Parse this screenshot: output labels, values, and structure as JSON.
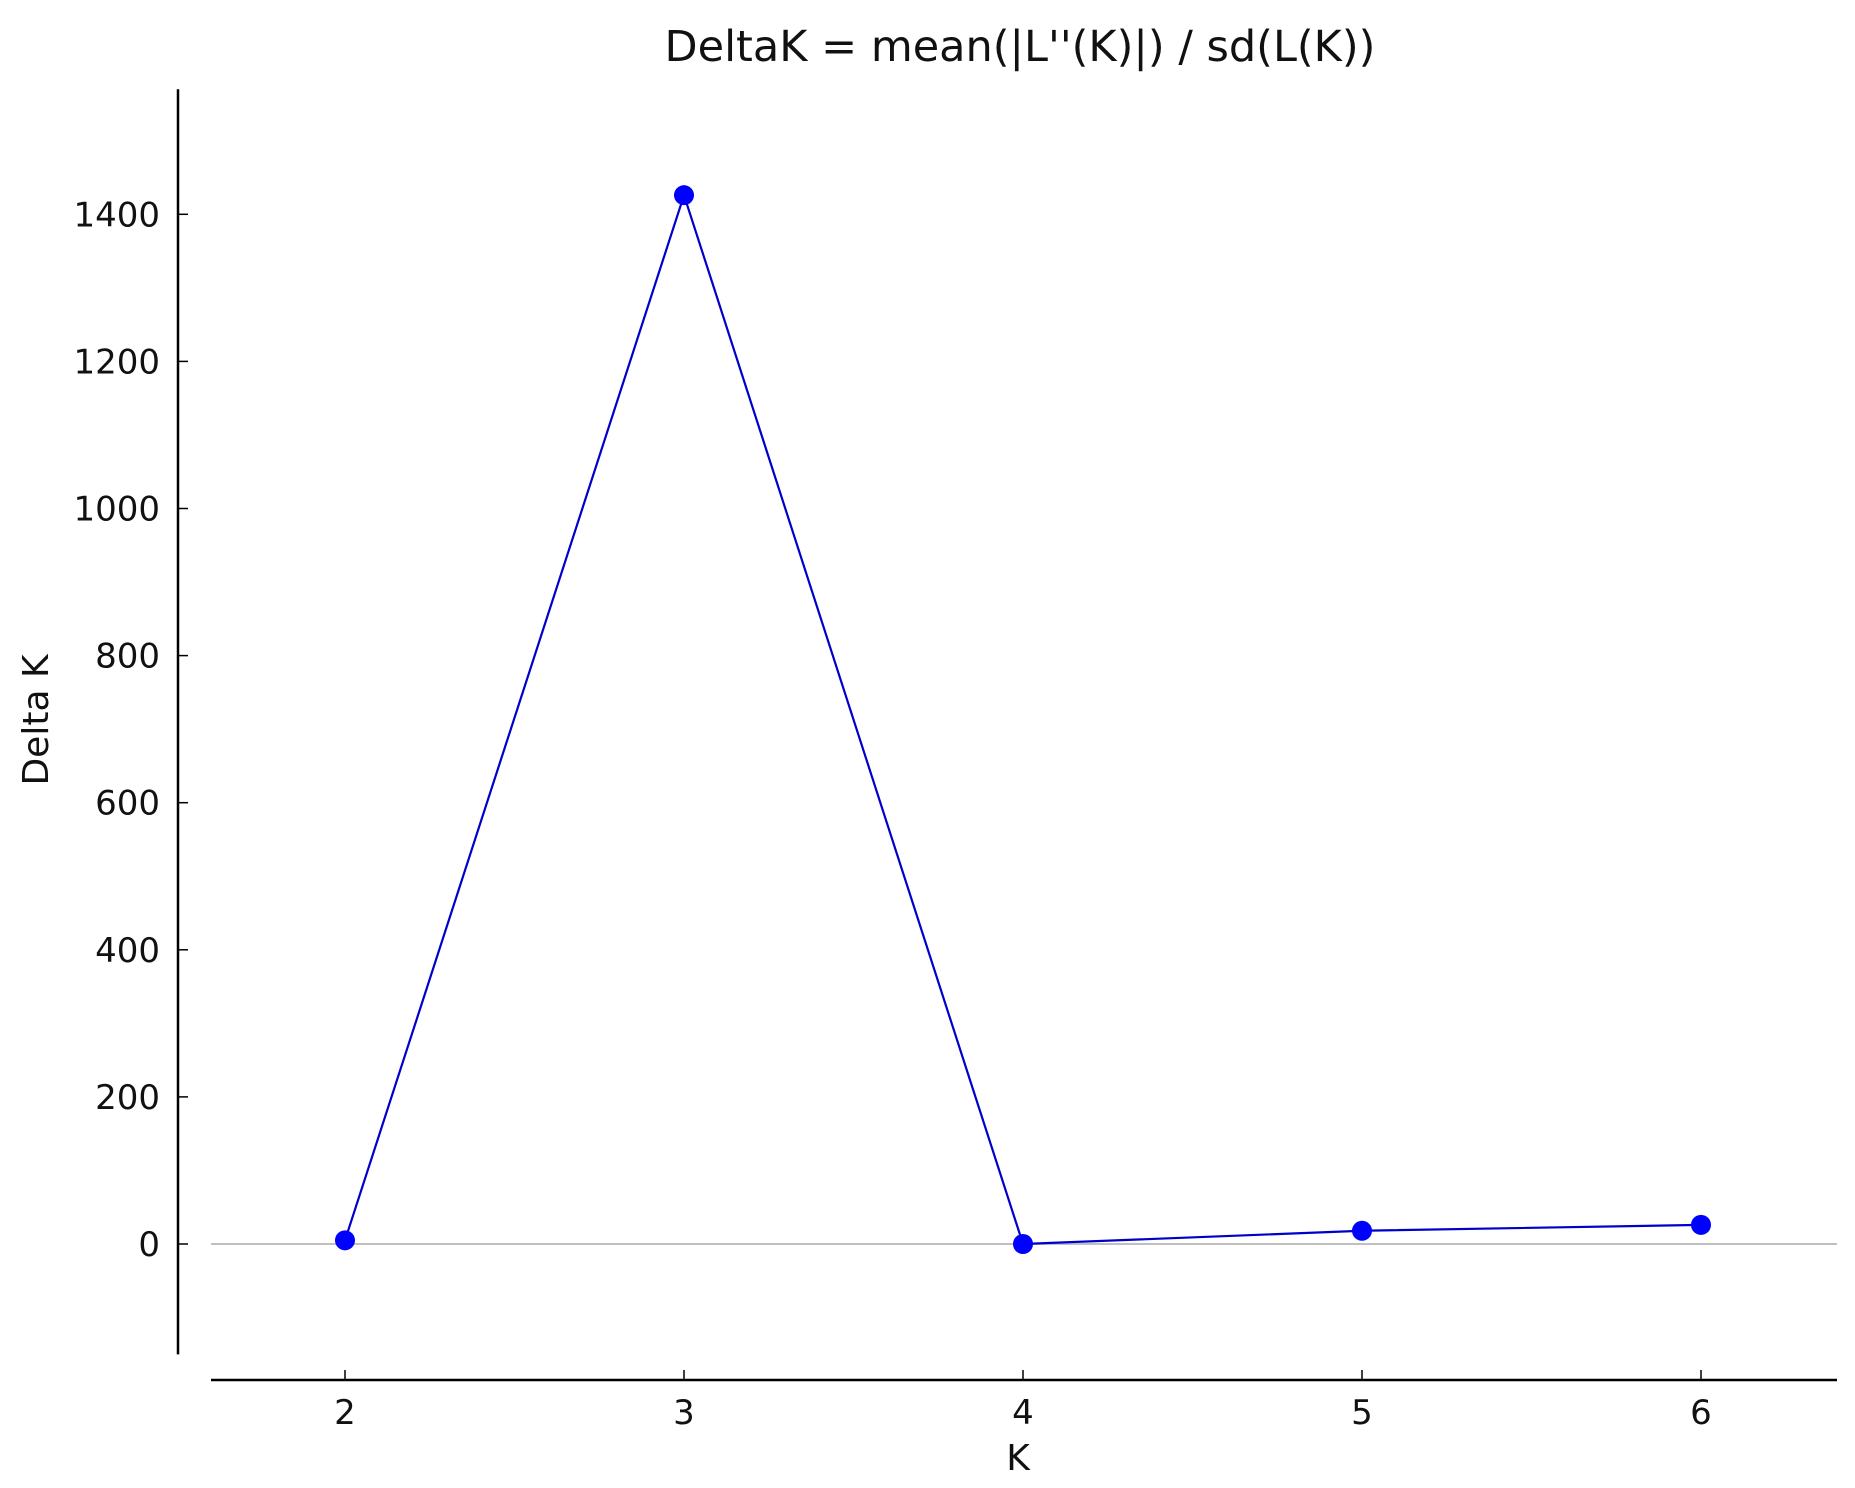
{
  "chart_data": {
    "type": "line",
    "title": "DeltaK = mean(|L''(K)|) / sd(L(K))",
    "xlabel": "K",
    "ylabel": "Delta K",
    "x": [
      2,
      3,
      4,
      5,
      6
    ],
    "series": [
      {
        "values": [
          5,
          1426,
          0,
          18,
          26
        ],
        "color": "#0000ff",
        "line_color": "#0000cc",
        "marker": "circle"
      }
    ],
    "xticks": [
      "2",
      "3",
      "4",
      "5",
      "6"
    ],
    "yticks": [
      "0",
      "200",
      "400",
      "600",
      "800",
      "1000",
      "1200",
      "1400"
    ],
    "xlim": [
      1.6,
      6.4
    ],
    "ylim": [
      -150,
      1570
    ],
    "grid": false,
    "zero_line": true,
    "zero_line_color": "#c0c0c0"
  }
}
